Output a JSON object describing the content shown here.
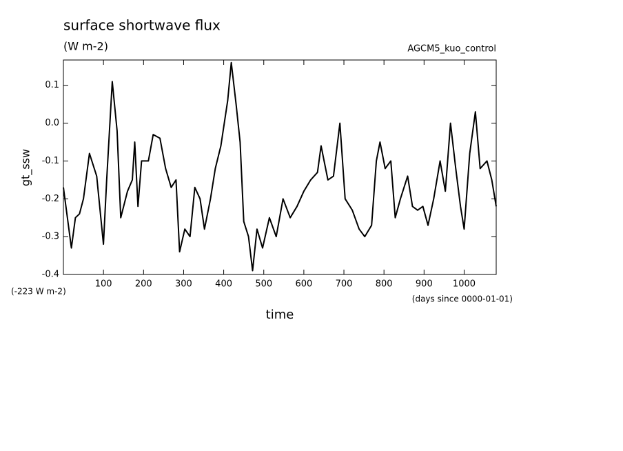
{
  "chart_data": {
    "type": "line",
    "title": "surface shortwave flux",
    "subtitle": "(W m-2)",
    "annotation": "AGCM5_kuo_control",
    "y_label": "gt_ssw",
    "x_label": "time",
    "y_offset_note": "(-223 W m-2)",
    "x_units": "(days since 0000-01-01)",
    "xlim": [
      0,
      1080
    ],
    "ylim": [
      -0.4,
      0.167
    ],
    "xticks": [
      100,
      200,
      300,
      400,
      500,
      600,
      700,
      800,
      900,
      1000
    ],
    "yticks": [
      0.1,
      {
        "value": 0,
        "label": "0.0"
      },
      -0.1,
      -0.2,
      -0.3,
      -0.4
    ],
    "x": [
      0,
      10,
      20,
      30,
      40,
      50,
      65,
      83,
      100,
      108,
      122,
      134,
      143,
      160,
      172,
      178,
      186,
      195,
      212,
      224,
      241,
      255,
      269,
      281,
      290,
      303,
      316,
      328,
      341,
      352,
      367,
      379,
      393,
      410,
      419,
      431,
      441,
      450,
      462,
      472,
      483,
      497,
      514,
      531,
      548,
      566,
      583,
      600,
      617,
      634,
      643,
      660,
      674,
      690,
      703,
      721,
      738,
      752,
      769,
      781,
      790,
      803,
      817,
      828,
      841,
      859,
      871,
      884,
      897,
      910,
      924,
      940,
      953,
      966,
      979,
      991,
      1000,
      1014,
      1028,
      1040,
      1057,
      1069,
      1080
    ],
    "series": [
      {
        "name": "gt_ssw",
        "color": "#000000",
        "values": [
          -0.17,
          -0.25,
          -0.33,
          -0.25,
          -0.24,
          -0.2,
          -0.08,
          -0.14,
          -0.32,
          -0.15,
          0.11,
          -0.02,
          -0.25,
          -0.18,
          -0.15,
          -0.05,
          -0.22,
          -0.1,
          -0.1,
          -0.03,
          -0.04,
          -0.12,
          -0.17,
          -0.15,
          -0.34,
          -0.28,
          -0.3,
          -0.17,
          -0.2,
          -0.28,
          -0.2,
          -0.12,
          -0.06,
          0.06,
          0.16,
          0.05,
          -0.05,
          -0.26,
          -0.3,
          -0.39,
          -0.28,
          -0.33,
          -0.25,
          -0.3,
          -0.2,
          -0.25,
          -0.22,
          -0.18,
          -0.15,
          -0.13,
          -0.06,
          -0.15,
          -0.14,
          0.0,
          -0.2,
          -0.23,
          -0.28,
          -0.3,
          -0.27,
          -0.1,
          -0.05,
          -0.12,
          -0.1,
          -0.25,
          -0.2,
          -0.14,
          -0.22,
          -0.23,
          -0.22,
          -0.27,
          -0.2,
          -0.1,
          -0.18,
          0.0,
          -0.12,
          -0.22,
          -0.28,
          -0.08,
          0.03,
          -0.12,
          -0.1,
          -0.15,
          -0.22
        ]
      }
    ]
  }
}
